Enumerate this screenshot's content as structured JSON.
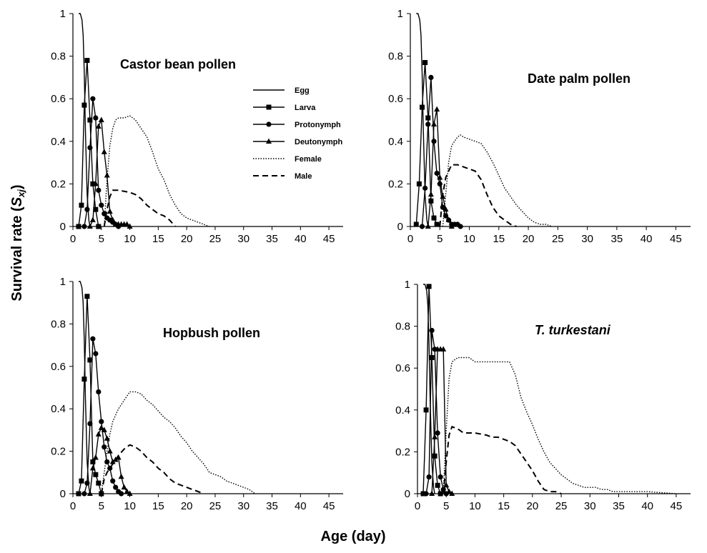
{
  "figure": {
    "ylabel": {
      "main": "Survival rate (",
      "var": "S",
      "sub": "xj",
      "close": ")"
    },
    "xlabel": "Age (day)"
  },
  "legend": {
    "entries": [
      {
        "key": "egg",
        "label": "Egg",
        "marker": "none",
        "dash": "solid"
      },
      {
        "key": "larva",
        "label": "Larva",
        "marker": "square",
        "dash": "solid"
      },
      {
        "key": "protonymph",
        "label": "Protonymph",
        "marker": "circle",
        "dash": "solid"
      },
      {
        "key": "deutonymph",
        "label": "Deutonymph",
        "marker": "triangle",
        "dash": "solid"
      },
      {
        "key": "female",
        "label": "Female",
        "marker": "none",
        "dash": "dotted"
      },
      {
        "key": "male",
        "label": "Male",
        "marker": "none",
        "dash": "dashed"
      }
    ]
  },
  "chart_data": [
    {
      "type": "line",
      "title": "Castor bean pollen",
      "italic": false,
      "xlim": [
        0,
        47.5
      ],
      "ylim": [
        0,
        1
      ],
      "xticks": [
        0,
        5,
        10,
        15,
        20,
        25,
        30,
        35,
        40,
        45
      ],
      "yticks": [
        0,
        0.2,
        0.4,
        0.6,
        0.8,
        1
      ],
      "series": [
        {
          "key": "egg",
          "x": [
            1,
            1.3,
            1.6,
            1.8,
            2.0,
            2.2,
            2.5,
            2.8,
            3.0
          ],
          "y": [
            1,
            1,
            0.97,
            0.9,
            0.72,
            0.45,
            0.15,
            0.03,
            0
          ]
        },
        {
          "key": "larva",
          "x": [
            1.0,
            1.5,
            2.0,
            2.5,
            3.0,
            3.5,
            4.0,
            4.5
          ],
          "y": [
            0,
            0.1,
            0.57,
            0.78,
            0.5,
            0.2,
            0.08,
            0
          ]
        },
        {
          "key": "protonymph",
          "x": [
            2.0,
            2.5,
            3.0,
            3.5,
            4.0,
            4.5,
            5.0,
            5.5,
            6.0,
            6.5,
            7.0,
            7.5,
            8.0
          ],
          "y": [
            0,
            0.08,
            0.37,
            0.6,
            0.51,
            0.17,
            0.1,
            0.06,
            0.04,
            0.03,
            0.02,
            0.01,
            0
          ]
        },
        {
          "key": "deutonymph",
          "x": [
            3.0,
            3.5,
            4.0,
            4.5,
            5.0,
            5.5,
            6.0,
            6.5,
            7.0,
            7.5,
            8.0,
            8.5,
            9.0,
            9.5,
            10.0
          ],
          "y": [
            0,
            0.03,
            0.2,
            0.47,
            0.5,
            0.35,
            0.24,
            0.07,
            0.03,
            0.01,
            0.01,
            0.01,
            0.01,
            0.01,
            0
          ]
        },
        {
          "key": "female",
          "x": [
            5.5,
            6.0,
            6.5,
            7.0,
            7.5,
            8.0,
            9.0,
            10.0,
            10.5,
            11.0,
            12.0,
            13.0,
            14.0,
            15.0,
            16.0,
            17.0,
            18.0,
            19.0,
            20.0,
            21.0,
            22.0,
            23.0,
            24.0
          ],
          "y": [
            0,
            0.22,
            0.38,
            0.46,
            0.5,
            0.51,
            0.51,
            0.52,
            0.51,
            0.5,
            0.46,
            0.42,
            0.35,
            0.27,
            0.22,
            0.15,
            0.1,
            0.06,
            0.04,
            0.03,
            0.02,
            0.01,
            0
          ]
        },
        {
          "key": "male",
          "x": [
            5.5,
            6.0,
            6.5,
            7.0,
            8.0,
            10.0,
            11.0,
            12.0,
            13.0,
            14.0,
            15.0,
            16.0,
            17.0,
            18.0
          ],
          "y": [
            0,
            0.08,
            0.14,
            0.17,
            0.17,
            0.16,
            0.15,
            0.13,
            0.1,
            0.08,
            0.06,
            0.05,
            0.03,
            0
          ]
        }
      ]
    },
    {
      "type": "line",
      "title": "Date palm pollen",
      "italic": false,
      "xlim": [
        0,
        47.5
      ],
      "ylim": [
        0,
        1
      ],
      "xticks": [
        0,
        5,
        10,
        15,
        20,
        25,
        30,
        35,
        40,
        45
      ],
      "yticks": [
        0,
        0.2,
        0.4,
        0.6,
        0.8,
        1
      ],
      "series": [
        {
          "key": "egg",
          "x": [
            1,
            1.3,
            1.6,
            1.8,
            2.0,
            2.2,
            2.5,
            2.8,
            3.0
          ],
          "y": [
            1,
            1,
            0.97,
            0.9,
            0.72,
            0.45,
            0.15,
            0.03,
            0
          ]
        },
        {
          "key": "larva",
          "x": [
            1.0,
            1.5,
            2.0,
            2.5,
            3.0,
            3.5,
            4.0,
            4.5
          ],
          "y": [
            0.01,
            0.2,
            0.56,
            0.77,
            0.51,
            0.12,
            0.04,
            0.01
          ]
        },
        {
          "key": "protonymph",
          "x": [
            2.0,
            2.5,
            3.0,
            3.5,
            4.0,
            4.5,
            5.0,
            5.5,
            6.0,
            6.5,
            7.0,
            7.5,
            8.0,
            8.5
          ],
          "y": [
            0,
            0.18,
            0.48,
            0.7,
            0.4,
            0.25,
            0.2,
            0.09,
            0.05,
            0.03,
            0.01,
            0.01,
            0.01,
            0
          ]
        },
        {
          "key": "deutonymph",
          "x": [
            3.0,
            3.5,
            4.0,
            4.5,
            5.0,
            5.5,
            6.0,
            6.5,
            7.0
          ],
          "y": [
            0,
            0.15,
            0.48,
            0.55,
            0.23,
            0.14,
            0.08,
            0.03,
            0
          ]
        },
        {
          "key": "female",
          "x": [
            5.5,
            6.0,
            6.5,
            7.0,
            8.0,
            8.5,
            9.0,
            10.0,
            11.0,
            12.0,
            13.0,
            14.0,
            15.0,
            16.0,
            17.0,
            18.0,
            19.0,
            20.0,
            21.0,
            22.0,
            23.0,
            24.0
          ],
          "y": [
            0,
            0.15,
            0.3,
            0.38,
            0.42,
            0.43,
            0.42,
            0.41,
            0.4,
            0.39,
            0.35,
            0.3,
            0.24,
            0.18,
            0.14,
            0.1,
            0.07,
            0.04,
            0.02,
            0.01,
            0.01,
            0
          ]
        },
        {
          "key": "male",
          "x": [
            5.0,
            5.5,
            6.0,
            6.5,
            7.0,
            8.0,
            9.0,
            10.0,
            11.0,
            12.0,
            13.0,
            14.0,
            15.0,
            16.0,
            17.0,
            18.0
          ],
          "y": [
            0,
            0.15,
            0.23,
            0.26,
            0.29,
            0.29,
            0.28,
            0.27,
            0.26,
            0.22,
            0.15,
            0.09,
            0.05,
            0.03,
            0.01,
            0
          ]
        }
      ]
    },
    {
      "type": "line",
      "title": "Hopbush pollen",
      "italic": false,
      "xlim": [
        0,
        47.5
      ],
      "ylim": [
        0,
        1
      ],
      "xticks": [
        0,
        5,
        10,
        15,
        20,
        25,
        30,
        35,
        40,
        45
      ],
      "yticks": [
        0,
        0.2,
        0.4,
        0.6,
        0.8,
        1
      ],
      "series": [
        {
          "key": "egg",
          "x": [
            1,
            1.3,
            1.6,
            1.8,
            2.0,
            2.2,
            2.5,
            2.8,
            3.0
          ],
          "y": [
            1,
            1,
            0.97,
            0.9,
            0.72,
            0.45,
            0.15,
            0.03,
            0
          ]
        },
        {
          "key": "larva",
          "x": [
            1.0,
            1.5,
            2.0,
            2.5,
            3.0,
            3.5,
            4.0,
            4.5,
            5.0
          ],
          "y": [
            0,
            0.06,
            0.54,
            0.93,
            0.63,
            0.15,
            0.09,
            0.05,
            0
          ]
        },
        {
          "key": "protonymph",
          "x": [
            2.0,
            2.5,
            3.0,
            3.5,
            4.0,
            4.5,
            5.0,
            5.5,
            6.0,
            6.5,
            7.0,
            7.5,
            8.0,
            8.5
          ],
          "y": [
            0,
            0.05,
            0.33,
            0.73,
            0.66,
            0.48,
            0.34,
            0.22,
            0.15,
            0.12,
            0.06,
            0.03,
            0.01,
            0
          ]
        },
        {
          "key": "deutonymph",
          "x": [
            3.0,
            3.5,
            4.0,
            4.5,
            5.0,
            5.5,
            6.0,
            6.5,
            7.0,
            7.5,
            8.0,
            8.5,
            9.0,
            9.5,
            10.0
          ],
          "y": [
            0,
            0.12,
            0.17,
            0.28,
            0.31,
            0.3,
            0.26,
            0.2,
            0.15,
            0.16,
            0.17,
            0.08,
            0.03,
            0.01,
            0
          ]
        },
        {
          "key": "female",
          "x": [
            5.0,
            5.5,
            6.0,
            6.5,
            7.0,
            8.0,
            9.0,
            10.0,
            11.0,
            12.0,
            13.0,
            14.0,
            15.0,
            16.0,
            17.0,
            18.0,
            19.0,
            20.0,
            21.0,
            22.0,
            23.0,
            24.0,
            25.0,
            26.0,
            27.0,
            28.0,
            29.0,
            30.0,
            31.0,
            32.0
          ],
          "y": [
            0,
            0.1,
            0.2,
            0.28,
            0.34,
            0.4,
            0.44,
            0.48,
            0.48,
            0.47,
            0.44,
            0.42,
            0.39,
            0.36,
            0.34,
            0.31,
            0.27,
            0.24,
            0.2,
            0.17,
            0.14,
            0.1,
            0.09,
            0.08,
            0.06,
            0.05,
            0.04,
            0.03,
            0.02,
            0
          ]
        },
        {
          "key": "male",
          "x": [
            5.0,
            5.5,
            6.0,
            6.5,
            7.0,
            8.0,
            9.0,
            10.0,
            11.0,
            12.0,
            13.0,
            14.0,
            15.0,
            16.0,
            17.0,
            18.0,
            19.0,
            20.0,
            21.0,
            22.0,
            23.0
          ],
          "y": [
            0,
            0.07,
            0.1,
            0.12,
            0.14,
            0.18,
            0.21,
            0.23,
            0.22,
            0.2,
            0.17,
            0.15,
            0.12,
            0.1,
            0.07,
            0.05,
            0.04,
            0.03,
            0.02,
            0.01,
            0
          ]
        }
      ]
    },
    {
      "type": "line",
      "title": "T. turkestani",
      "italic": true,
      "xlim": [
        0,
        47.5
      ],
      "ylim": [
        0,
        1
      ],
      "xticks": [
        0,
        5,
        10,
        15,
        20,
        25,
        30,
        35,
        40,
        45
      ],
      "yticks": [
        0,
        0.2,
        0.4,
        0.6,
        0.8,
        1
      ],
      "series": [
        {
          "key": "egg",
          "x": [
            1,
            1.3,
            1.6,
            1.8,
            2.0,
            2.2,
            2.5,
            2.8,
            3.0
          ],
          "y": [
            1,
            1,
            0.97,
            0.9,
            0.72,
            0.45,
            0.15,
            0.03,
            0
          ]
        },
        {
          "key": "larva",
          "x": [
            1.0,
            1.5,
            2.0,
            2.5,
            3.0,
            3.5,
            4.0
          ],
          "y": [
            0,
            0.4,
            0.99,
            0.65,
            0.18,
            0.04,
            0
          ]
        },
        {
          "key": "protonymph",
          "x": [
            1.5,
            2.0,
            2.5,
            3.0,
            3.5,
            4.0,
            4.5,
            5.0
          ],
          "y": [
            0,
            0.08,
            0.78,
            0.69,
            0.29,
            0.08,
            0.02,
            0
          ]
        },
        {
          "key": "deutonymph",
          "x": [
            2.5,
            3.0,
            3.5,
            4.0,
            4.5,
            5.0,
            5.5,
            6.0
          ],
          "y": [
            0,
            0.27,
            0.69,
            0.69,
            0.69,
            0.04,
            0.01,
            0
          ]
        },
        {
          "key": "female",
          "x": [
            4.5,
            5.0,
            5.5,
            6.0,
            7.0,
            8.0,
            9.0,
            10.0,
            12.0,
            14.0,
            16.0,
            17.0,
            18.0,
            19.0,
            20.0,
            21.0,
            22.0,
            23.0,
            24.0,
            25.0,
            26.0,
            27.0,
            28.0,
            29.0,
            30.0,
            31.0,
            32.0,
            33.0,
            34.0,
            35.0,
            40.0,
            45.0
          ],
          "y": [
            0,
            0.3,
            0.55,
            0.63,
            0.65,
            0.65,
            0.65,
            0.63,
            0.63,
            0.63,
            0.63,
            0.57,
            0.46,
            0.39,
            0.33,
            0.26,
            0.2,
            0.15,
            0.12,
            0.09,
            0.07,
            0.05,
            0.04,
            0.03,
            0.03,
            0.03,
            0.02,
            0.02,
            0.01,
            0.01,
            0.01,
            0
          ]
        },
        {
          "key": "male",
          "x": [
            4.5,
            5.0,
            5.5,
            6.0,
            7.0,
            8.0,
            10.0,
            12.0,
            13.0,
            14.0,
            15.0,
            16.0,
            17.0,
            18.0,
            19.0,
            20.0,
            21.0,
            22.0,
            23.0,
            24.0,
            25.0
          ],
          "y": [
            0,
            0.15,
            0.28,
            0.32,
            0.31,
            0.29,
            0.29,
            0.28,
            0.27,
            0.27,
            0.26,
            0.25,
            0.23,
            0.19,
            0.15,
            0.11,
            0.06,
            0.02,
            0.01,
            0.01,
            0
          ]
        }
      ]
    }
  ]
}
